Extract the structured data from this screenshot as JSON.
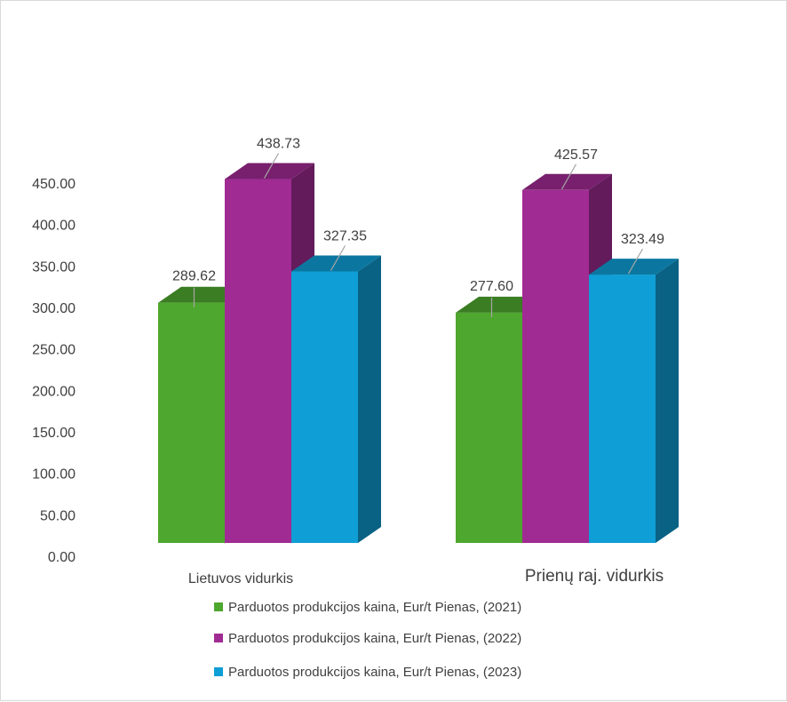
{
  "chart_data": {
    "type": "bar",
    "categories": [
      "Lietuvos vidurkis",
      "Prienų raj. vidurkis"
    ],
    "series": [
      {
        "name": "Parduotos produkcijos kaina, Eur/t  Pienas,  (2021)",
        "values": [
          289.62,
          277.6
        ],
        "color": "#4ea72e"
      },
      {
        "name": "Parduotos produkcijos kaina, Eur/t  Pienas,  (2022)",
        "values": [
          438.73,
          425.57
        ],
        "color": "#a02b93"
      },
      {
        "name": "Parduotos produkcijos kaina, Eur/t  Pienas,  (2023)",
        "values": [
          327.35,
          323.49
        ],
        "color": "#0f9ed5"
      }
    ],
    "data_labels": [
      [
        "289.62",
        "277.60"
      ],
      [
        "438.73",
        "425.57"
      ],
      [
        "327.35",
        "323.49"
      ]
    ],
    "yticks": [
      "0.00",
      "50.00",
      "100.00",
      "150.00",
      "200.00",
      "250.00",
      "300.00",
      "350.00",
      "400.00",
      "450.00"
    ],
    "ylim": [
      0,
      450
    ],
    "grid": false,
    "style": "3d-column",
    "legend_position": "bottom"
  }
}
